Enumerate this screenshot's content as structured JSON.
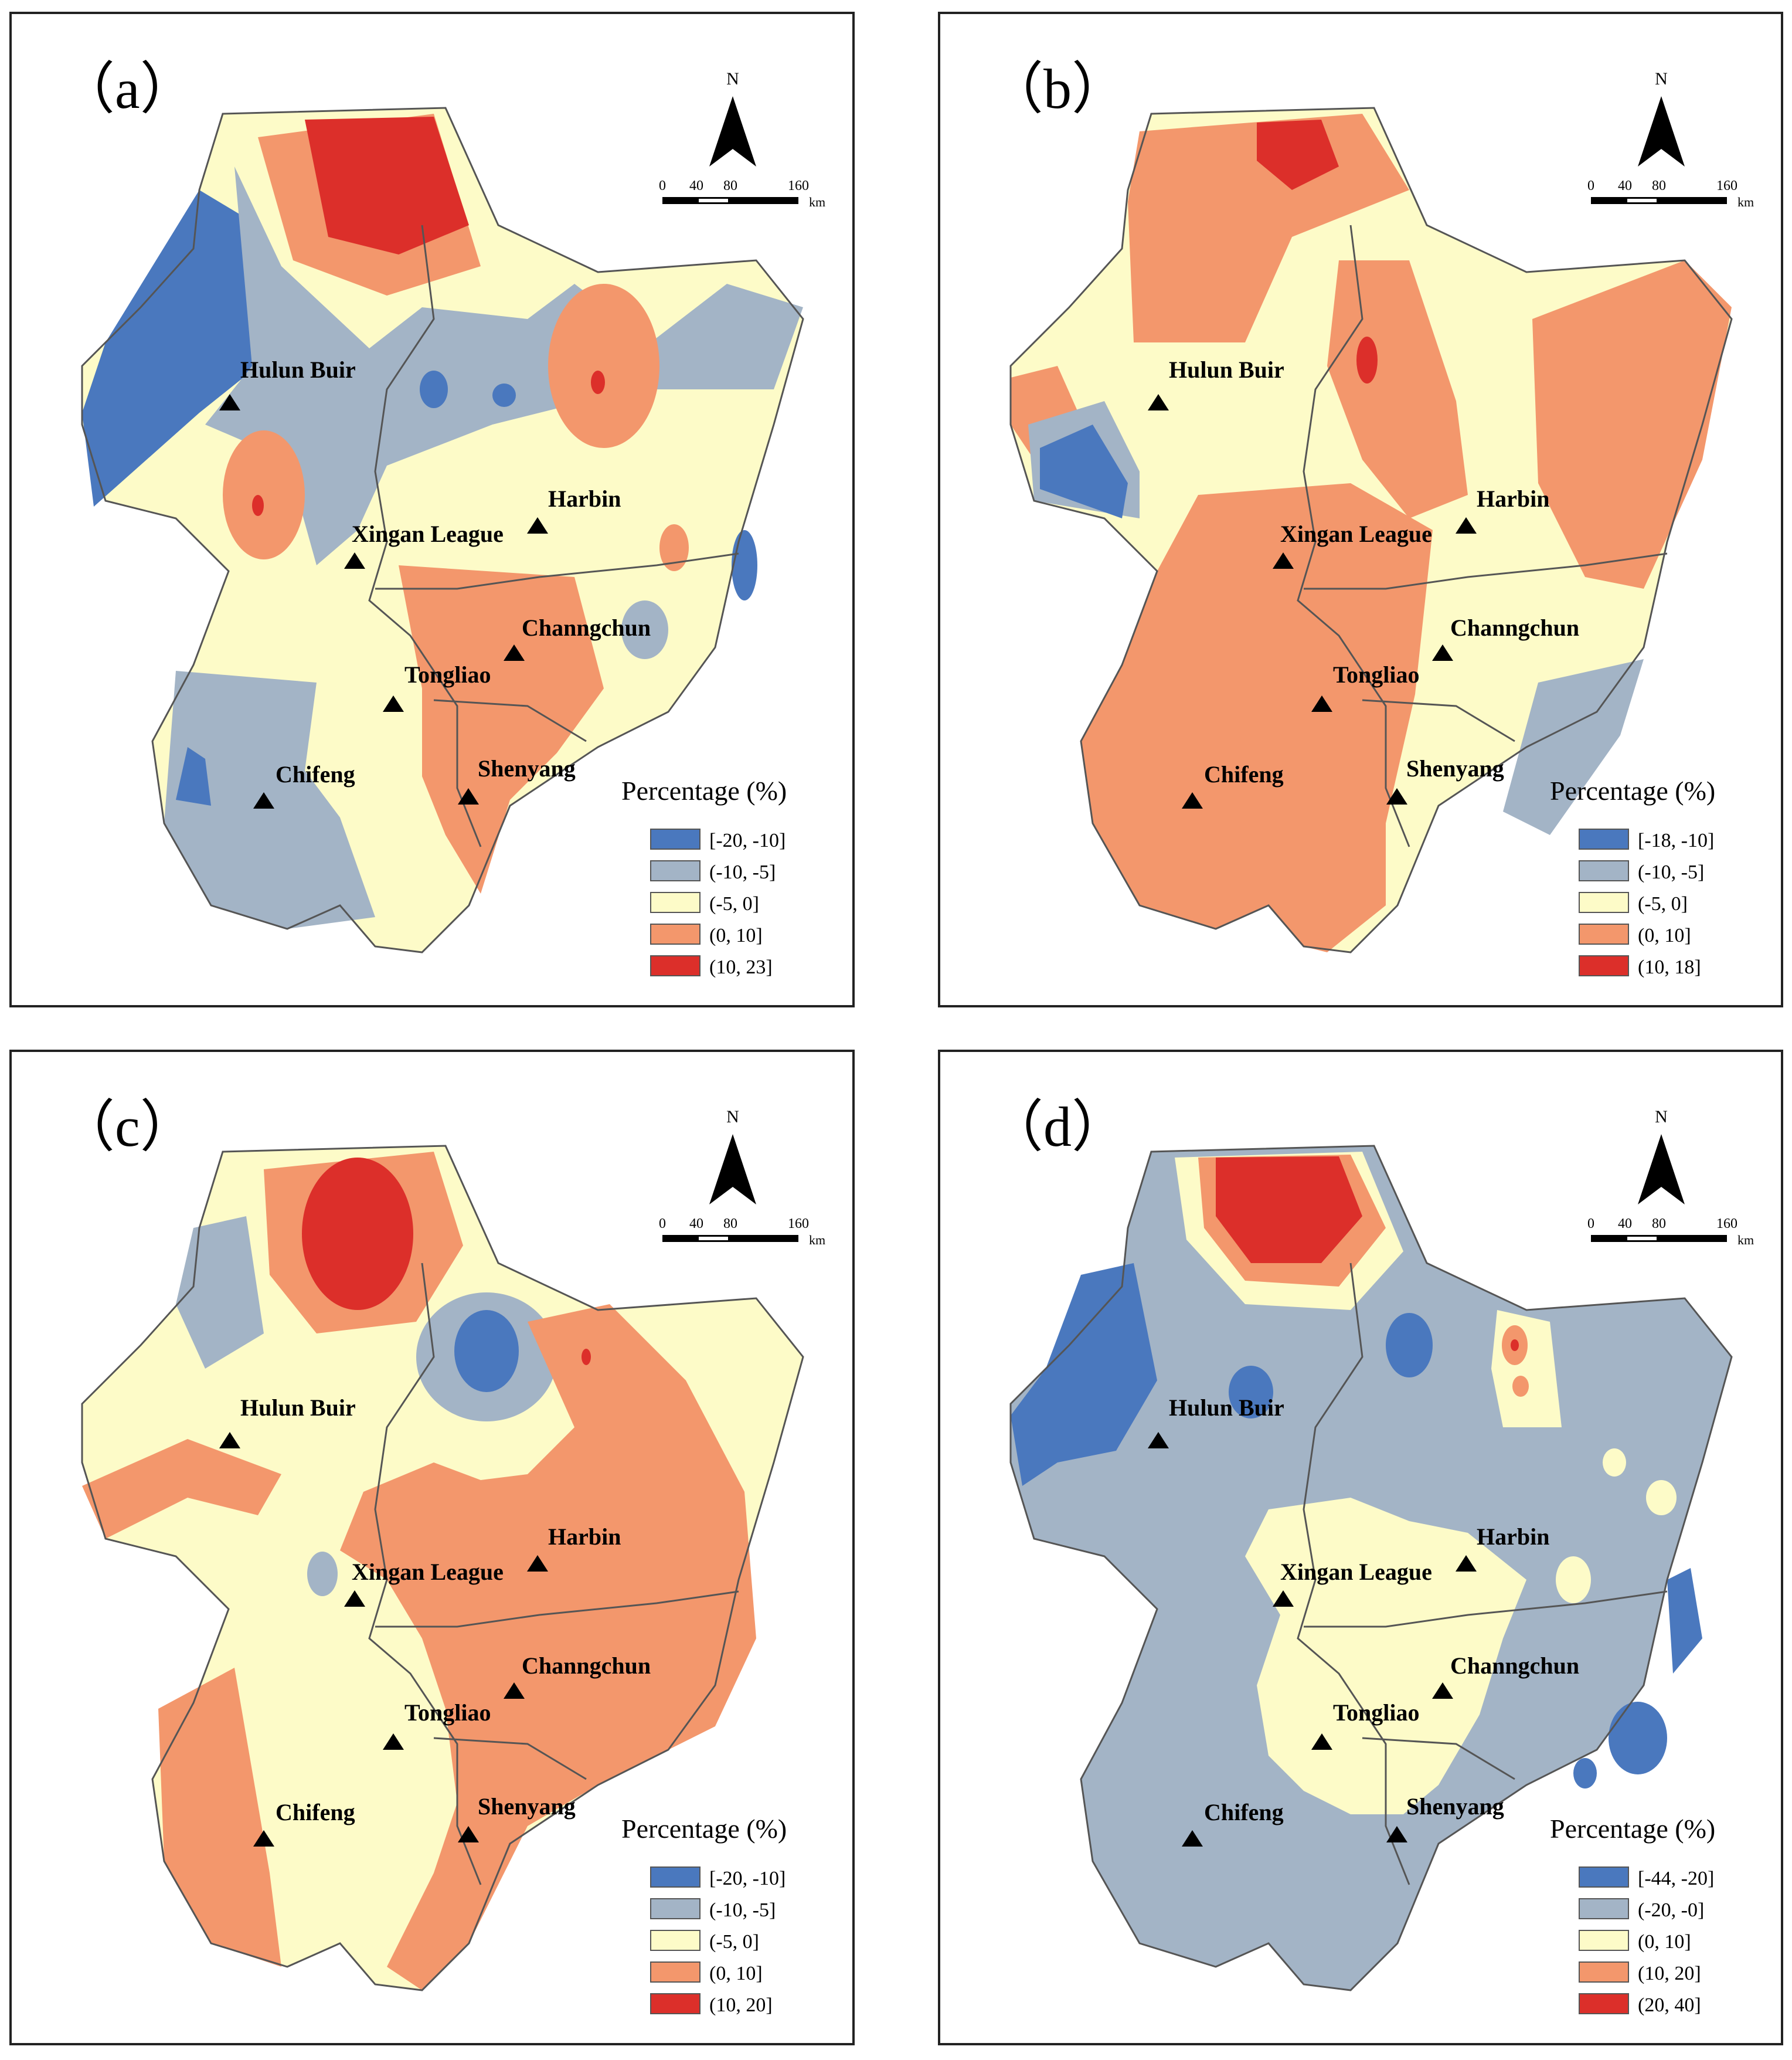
{
  "compass_letter": "N",
  "scale": {
    "ticks": [
      "0",
      "40",
      "80",
      "160"
    ],
    "unit": "km"
  },
  "legend_title": "Percentage (%)",
  "cities": [
    "Hulun Buir",
    "Harbin",
    "Xingan League",
    "Channgchun",
    "Tongliao",
    "Chifeng",
    "Shenyang"
  ],
  "colors": {
    "class1": "#4a78be",
    "class2": "#a3b4c6",
    "class3": "#fdfbc8",
    "class4": "#f3976c",
    "class5": "#dc2f2a"
  },
  "panels": [
    {
      "label": "（a）",
      "legend": [
        "[-20, -10]",
        "(-10, -5]",
        "(-5, 0]",
        "(0, 10]",
        "(10, 23]"
      ]
    },
    {
      "label": "（b）",
      "legend": [
        "[-18, -10]",
        "(-10, -5]",
        "(-5, 0]",
        "(0, 10]",
        "(10, 18]"
      ]
    },
    {
      "label": "（c）",
      "legend": [
        "[-20, -10]",
        "(-10, -5]",
        "(-5, 0]",
        "(0, 10]",
        "(10, 20]"
      ]
    },
    {
      "label": "（d）",
      "legend": [
        "[-44, -20]",
        "(-20, -0]",
        "(0, 10]",
        "(10, 20]",
        "(20, 40]"
      ]
    }
  ]
}
